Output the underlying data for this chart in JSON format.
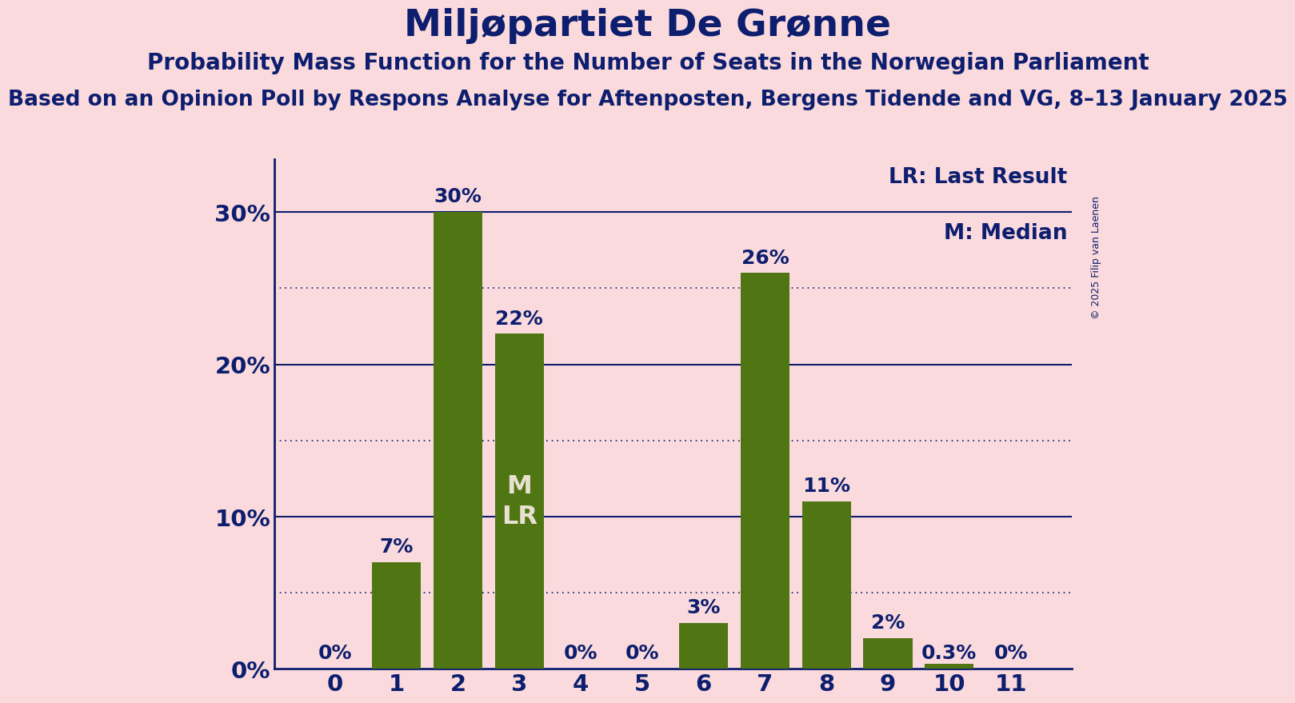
{
  "title": "Miljøpartiet De Grønne",
  "subtitle": "Probability Mass Function for the Number of Seats in the Norwegian Parliament",
  "subsubtitle": "Based on an Opinion Poll by Respons Analyse for Aftenposten, Bergens Tidende and VG, 8–13 January 2025",
  "categories": [
    0,
    1,
    2,
    3,
    4,
    5,
    6,
    7,
    8,
    9,
    10,
    11
  ],
  "values": [
    0.0,
    0.07,
    0.3,
    0.22,
    0.0,
    0.0,
    0.03,
    0.26,
    0.11,
    0.02,
    0.003,
    0.0
  ],
  "labels": [
    "0%",
    "7%",
    "30%",
    "22%",
    "0%",
    "0%",
    "3%",
    "26%",
    "11%",
    "2%",
    "0.3%",
    "0%"
  ],
  "bar_color": "#507614",
  "background_color": "#FADADD",
  "title_color": "#0D1E6E",
  "label_color": "#0D1E6E",
  "grid_major_color": "#0D1E6E",
  "grid_minor_color": "#0D1E6E",
  "median_bar": 3,
  "lr_bar": 3,
  "median_label_color": "#E8E0D0",
  "ylim": [
    0,
    0.335
  ],
  "yticks": [
    0.0,
    0.1,
    0.2,
    0.3
  ],
  "ytick_labels": [
    "0%",
    "10%",
    "20%",
    "30%"
  ],
  "copyright_text": "© 2025 Filip van Laenen",
  "legend_lr": "LR: Last Result",
  "legend_m": "M: Median",
  "bar_label_fontsize": 18,
  "title_fontsize": 34,
  "subtitle_fontsize": 20,
  "subsubtitle_fontsize": 19,
  "axis_fontsize": 21,
  "legend_fontsize": 19,
  "mlr_fontsize": 23,
  "copyright_fontsize": 9
}
